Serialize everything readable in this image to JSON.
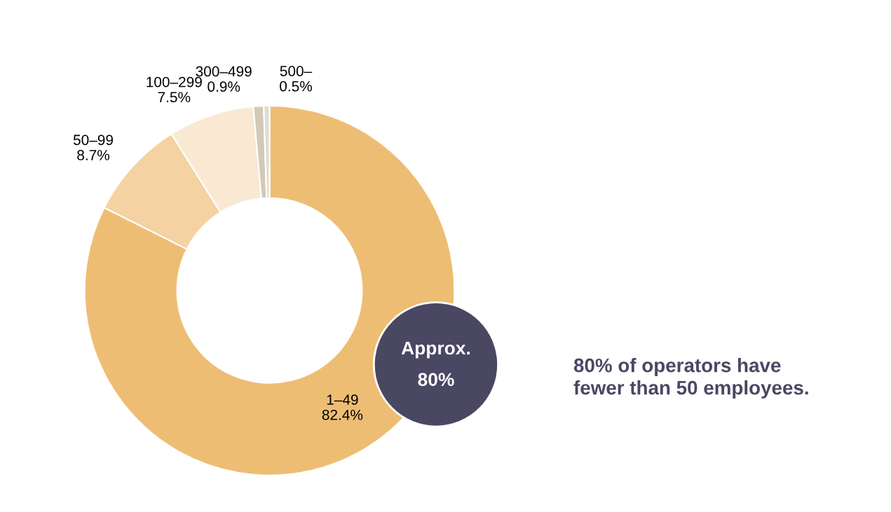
{
  "chart_data": {
    "type": "donut",
    "categories": [
      "1–49",
      "50–99",
      "100–299",
      "300–499",
      "500–"
    ],
    "values": [
      82.4,
      8.7,
      7.5,
      0.9,
      0.5
    ],
    "colors": [
      "#eebd74",
      "#f5d2a2",
      "#f9e9d3",
      "#d2c9b8",
      "#e0dcd3"
    ],
    "value_labels": [
      "82.4%",
      "8.7%",
      "7.5%",
      "0.9%",
      "0.5%"
    ],
    "annotations": [
      "Approx.",
      "80%",
      "80% of operators have\nfewer than 50 employees."
    ],
    "legend": false
  }
}
